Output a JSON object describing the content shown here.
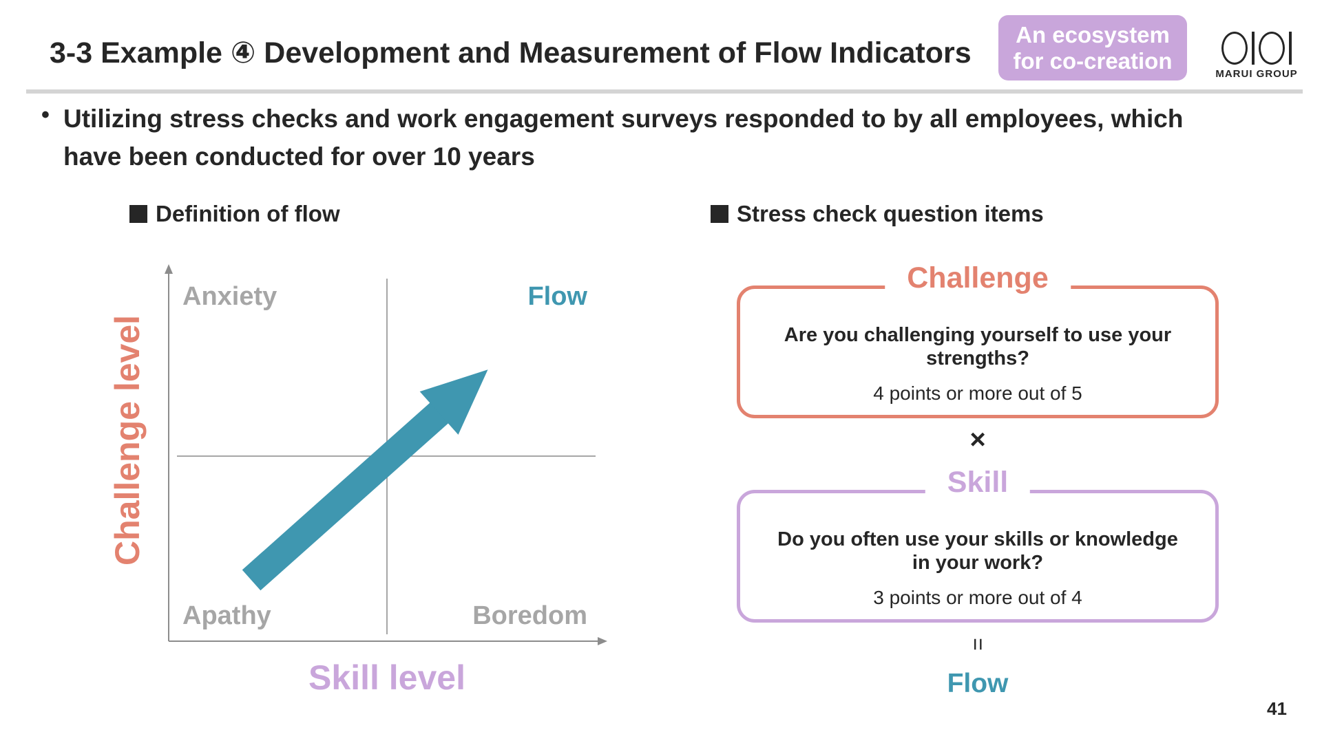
{
  "header": {
    "title": "3-3 Example ④ Development and Measurement of Flow Indicators",
    "badge_line1": "An ecosystem",
    "badge_line2": "for co-creation",
    "logo_text": "MARUI GROUP"
  },
  "bullet": {
    "text": "Utilizing stress checks and work engagement surveys responded to by all employees, which have been conducted for over 10 years"
  },
  "definition": {
    "heading": "Definition of flow",
    "y_axis_label": "Challenge level",
    "x_axis_label": "Skill level",
    "quadrants": {
      "top_left": "Anxiety",
      "top_right": "Flow",
      "bottom_left": "Apathy",
      "bottom_right": "Boredom"
    }
  },
  "stress_check": {
    "heading": "Stress check question items",
    "challenge": {
      "title": "Challenge",
      "question": "Are you challenging yourself to use your strengths?",
      "criterion": "4 points or more out of 5"
    },
    "times_symbol": "×",
    "skill": {
      "title": "Skill",
      "question": "Do you often use your skills or knowledge in your work?",
      "criterion": "3 points or more out of 4"
    },
    "equals_symbol": "=",
    "result": "Flow"
  },
  "colors": {
    "challenge": "#e3826f",
    "skill": "#c9a6db",
    "flow": "#3f97b0",
    "quadrant_label": "#a6a6a6",
    "axis": "#8c8c8c"
  },
  "page_number": "41"
}
